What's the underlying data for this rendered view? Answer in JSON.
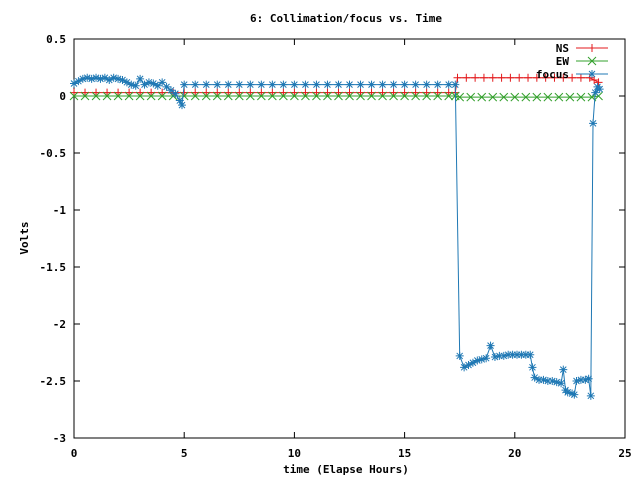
{
  "chart_data": {
    "type": "line",
    "title": "6: Collimation/focus vs. Time",
    "xlabel": "time (Elapse Hours)",
    "ylabel": "Volts",
    "xlim": [
      0,
      25
    ],
    "ylim": [
      -3,
      0.5
    ],
    "xticks": [
      0,
      5,
      10,
      15,
      20,
      25
    ],
    "xtick_labels": [
      "0",
      "5",
      "10",
      "15",
      "20",
      "25"
    ],
    "yticks": [
      -3,
      -2.5,
      -2,
      -1.5,
      -1,
      -0.5,
      0,
      0.5
    ],
    "ytick_labels": [
      "-3",
      "-2.5",
      "-2",
      "-1.5",
      "-1",
      "-0.5",
      "0",
      "0.5"
    ],
    "grid": false,
    "legend_position": "top-right",
    "series": [
      {
        "name": "NS",
        "color": "#e31a1c",
        "marker": "plus",
        "points": [
          [
            0.0,
            0.03
          ],
          [
            0.5,
            0.03
          ],
          [
            1.0,
            0.03
          ],
          [
            1.5,
            0.03
          ],
          [
            2.0,
            0.03
          ],
          [
            2.5,
            0.03
          ],
          [
            3.0,
            0.03
          ],
          [
            3.5,
            0.03
          ],
          [
            4.0,
            0.03
          ],
          [
            4.5,
            0.03
          ],
          [
            5.0,
            0.03
          ],
          [
            5.5,
            0.03
          ],
          [
            6.0,
            0.03
          ],
          [
            6.5,
            0.03
          ],
          [
            7.0,
            0.03
          ],
          [
            7.5,
            0.03
          ],
          [
            8.0,
            0.03
          ],
          [
            8.5,
            0.03
          ],
          [
            9.0,
            0.03
          ],
          [
            9.5,
            0.03
          ],
          [
            10.0,
            0.03
          ],
          [
            10.5,
            0.03
          ],
          [
            11.0,
            0.03
          ],
          [
            11.5,
            0.03
          ],
          [
            12.0,
            0.03
          ],
          [
            12.5,
            0.03
          ],
          [
            13.0,
            0.03
          ],
          [
            13.5,
            0.03
          ],
          [
            14.0,
            0.03
          ],
          [
            14.5,
            0.03
          ],
          [
            15.0,
            0.03
          ],
          [
            15.5,
            0.03
          ],
          [
            16.0,
            0.03
          ],
          [
            16.5,
            0.03
          ],
          [
            17.0,
            0.03
          ],
          [
            17.3,
            0.03
          ],
          [
            17.4,
            0.16
          ],
          [
            17.8,
            0.16
          ],
          [
            18.2,
            0.16
          ],
          [
            18.6,
            0.16
          ],
          [
            19.0,
            0.16
          ],
          [
            19.4,
            0.16
          ],
          [
            19.8,
            0.16
          ],
          [
            20.2,
            0.16
          ],
          [
            20.6,
            0.16
          ],
          [
            21.0,
            0.16
          ],
          [
            21.4,
            0.16
          ],
          [
            21.8,
            0.16
          ],
          [
            22.2,
            0.16
          ],
          [
            22.6,
            0.16
          ],
          [
            23.0,
            0.16
          ],
          [
            23.4,
            0.16
          ],
          [
            23.6,
            0.14
          ],
          [
            23.8,
            0.12
          ]
        ]
      },
      {
        "name": "EW",
        "color": "#33a02c",
        "marker": "cross",
        "points": [
          [
            0.0,
            0.0
          ],
          [
            0.5,
            0.0
          ],
          [
            1.0,
            0.0
          ],
          [
            1.5,
            0.0
          ],
          [
            2.0,
            0.0
          ],
          [
            2.5,
            0.0
          ],
          [
            3.0,
            0.0
          ],
          [
            3.5,
            0.0
          ],
          [
            4.0,
            0.0
          ],
          [
            4.5,
            0.0
          ],
          [
            5.0,
            0.0
          ],
          [
            5.5,
            0.0
          ],
          [
            6.0,
            0.0
          ],
          [
            6.5,
            0.0
          ],
          [
            7.0,
            0.0
          ],
          [
            7.5,
            0.0
          ],
          [
            8.0,
            0.0
          ],
          [
            8.5,
            0.0
          ],
          [
            9.0,
            0.0
          ],
          [
            9.5,
            0.0
          ],
          [
            10.0,
            0.0
          ],
          [
            10.5,
            0.0
          ],
          [
            11.0,
            0.0
          ],
          [
            11.5,
            0.0
          ],
          [
            12.0,
            0.0
          ],
          [
            12.5,
            0.0
          ],
          [
            13.0,
            0.0
          ],
          [
            13.5,
            0.0
          ],
          [
            14.0,
            0.0
          ],
          [
            14.5,
            0.0
          ],
          [
            15.0,
            0.0
          ],
          [
            15.5,
            0.0
          ],
          [
            16.0,
            0.0
          ],
          [
            16.5,
            0.0
          ],
          [
            17.0,
            0.0
          ],
          [
            17.3,
            0.0
          ],
          [
            17.5,
            -0.01
          ],
          [
            18.0,
            -0.01
          ],
          [
            18.5,
            -0.01
          ],
          [
            19.0,
            -0.01
          ],
          [
            19.5,
            -0.01
          ],
          [
            20.0,
            -0.01
          ],
          [
            20.5,
            -0.01
          ],
          [
            21.0,
            -0.01
          ],
          [
            21.5,
            -0.01
          ],
          [
            22.0,
            -0.01
          ],
          [
            22.5,
            -0.01
          ],
          [
            23.0,
            -0.01
          ],
          [
            23.5,
            -0.01
          ],
          [
            23.8,
            0.0
          ]
        ]
      },
      {
        "name": "focus",
        "color": "#1f78b4",
        "marker": "star",
        "points": [
          [
            0.0,
            0.11
          ],
          [
            0.2,
            0.13
          ],
          [
            0.4,
            0.15
          ],
          [
            0.6,
            0.16
          ],
          [
            0.8,
            0.15
          ],
          [
            1.0,
            0.16
          ],
          [
            1.2,
            0.15
          ],
          [
            1.4,
            0.16
          ],
          [
            1.6,
            0.14
          ],
          [
            1.8,
            0.16
          ],
          [
            2.0,
            0.15
          ],
          [
            2.2,
            0.14
          ],
          [
            2.4,
            0.12
          ],
          [
            2.6,
            0.1
          ],
          [
            2.8,
            0.09
          ],
          [
            3.0,
            0.15
          ],
          [
            3.2,
            0.1
          ],
          [
            3.4,
            0.12
          ],
          [
            3.6,
            0.11
          ],
          [
            3.8,
            0.09
          ],
          [
            4.0,
            0.12
          ],
          [
            4.2,
            0.08
          ],
          [
            4.4,
            0.05
          ],
          [
            4.6,
            0.02
          ],
          [
            4.8,
            -0.04
          ],
          [
            4.9,
            -0.08
          ],
          [
            5.0,
            0.1
          ],
          [
            5.5,
            0.1
          ],
          [
            6.0,
            0.1
          ],
          [
            6.5,
            0.1
          ],
          [
            7.0,
            0.1
          ],
          [
            7.5,
            0.1
          ],
          [
            8.0,
            0.1
          ],
          [
            8.5,
            0.1
          ],
          [
            9.0,
            0.1
          ],
          [
            9.5,
            0.1
          ],
          [
            10.0,
            0.1
          ],
          [
            10.5,
            0.1
          ],
          [
            11.0,
            0.1
          ],
          [
            11.5,
            0.1
          ],
          [
            12.0,
            0.1
          ],
          [
            12.5,
            0.1
          ],
          [
            13.0,
            0.1
          ],
          [
            13.5,
            0.1
          ],
          [
            14.0,
            0.1
          ],
          [
            14.5,
            0.1
          ],
          [
            15.0,
            0.1
          ],
          [
            15.5,
            0.1
          ],
          [
            16.0,
            0.1
          ],
          [
            16.5,
            0.1
          ],
          [
            17.0,
            0.1
          ],
          [
            17.3,
            0.1
          ],
          [
            17.5,
            -2.28
          ],
          [
            17.7,
            -2.38
          ],
          [
            17.9,
            -2.36
          ],
          [
            18.1,
            -2.34
          ],
          [
            18.3,
            -2.32
          ],
          [
            18.5,
            -2.31
          ],
          [
            18.7,
            -2.3
          ],
          [
            18.9,
            -2.19
          ],
          [
            19.1,
            -2.29
          ],
          [
            19.3,
            -2.28
          ],
          [
            19.5,
            -2.28
          ],
          [
            19.7,
            -2.27
          ],
          [
            19.9,
            -2.27
          ],
          [
            20.1,
            -2.27
          ],
          [
            20.3,
            -2.27
          ],
          [
            20.5,
            -2.27
          ],
          [
            20.7,
            -2.27
          ],
          [
            20.8,
            -2.38
          ],
          [
            20.9,
            -2.47
          ],
          [
            21.1,
            -2.49
          ],
          [
            21.3,
            -2.49
          ],
          [
            21.5,
            -2.5
          ],
          [
            21.7,
            -2.5
          ],
          [
            21.9,
            -2.51
          ],
          [
            22.1,
            -2.52
          ],
          [
            22.2,
            -2.4
          ],
          [
            22.3,
            -2.58
          ],
          [
            22.4,
            -2.6
          ],
          [
            22.6,
            -2.61
          ],
          [
            22.7,
            -2.62
          ],
          [
            22.8,
            -2.5
          ],
          [
            23.0,
            -2.49
          ],
          [
            23.2,
            -2.49
          ],
          [
            23.35,
            -2.48
          ],
          [
            23.45,
            -2.63
          ],
          [
            23.55,
            -0.24
          ],
          [
            23.65,
            0.03
          ],
          [
            23.75,
            0.08
          ],
          [
            23.85,
            0.06
          ]
        ]
      }
    ]
  }
}
